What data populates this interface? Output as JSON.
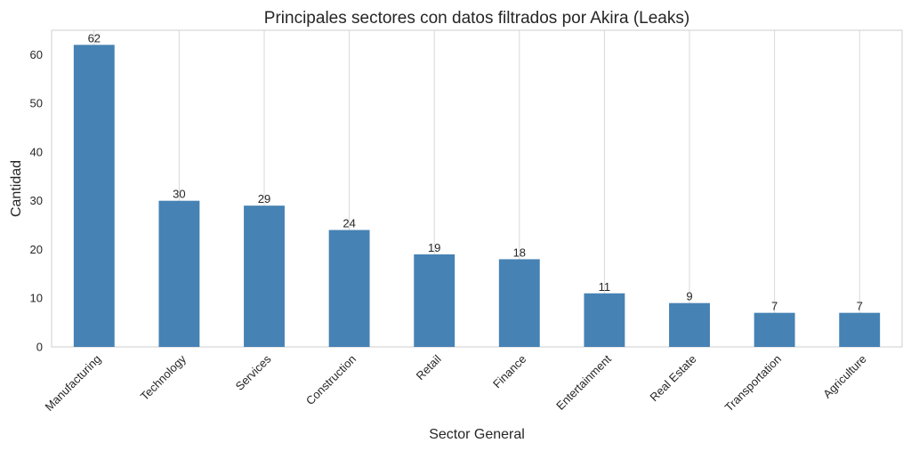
{
  "chart_data": {
    "type": "bar",
    "title": "Principales sectores con datos filtrados por Akira (Leaks)",
    "xlabel": "Sector General",
    "ylabel": "Cantidad",
    "categories": [
      "Manufacturing",
      "Technology",
      "Services",
      "Construction",
      "Retail",
      "Finance",
      "Entertainment",
      "Real Estate",
      "Transportation",
      "Agriculture"
    ],
    "values": [
      62,
      30,
      29,
      24,
      19,
      18,
      11,
      9,
      7,
      7
    ],
    "ylim": [
      0,
      65
    ],
    "yticks": [
      0,
      10,
      20,
      30,
      40,
      50,
      60
    ],
    "grid": "x-only",
    "data_labels": true,
    "bar_color": "#4682b4"
  }
}
